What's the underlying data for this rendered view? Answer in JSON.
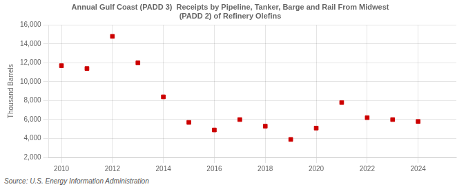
{
  "chart_data": {
    "type": "scatter",
    "title": "Annual Gulf Coast (PADD 3)  Receipts by Pipeline, Tanker, Barge and Rail From Midwest\n(PADD 2) of Refinery Olefins",
    "y_label": "Thousand Barrels",
    "source": "Source: U.S. Energy Information Administration",
    "x": [
      2010,
      2011,
      2012,
      2013,
      2014,
      2015,
      2016,
      2017,
      2018,
      2019,
      2020,
      2021,
      2022,
      2023,
      2024
    ],
    "values": [
      11700,
      11400,
      14800,
      12000,
      8400,
      5700,
      4900,
      6000,
      5300,
      3900,
      5100,
      7800,
      6200,
      6000,
      5800
    ],
    "color": "#cc0000",
    "marker": "square",
    "xlim": [
      2009.5,
      2025.5
    ],
    "xticks": [
      2010,
      2012,
      2014,
      2016,
      2018,
      2020,
      2022,
      2024
    ],
    "ylim": [
      2000,
      16000
    ],
    "yticks": [
      {
        "value": 2000,
        "label": "2,000"
      },
      {
        "value": 4000,
        "label": "4,000"
      },
      {
        "value": 6000,
        "label": "6,000"
      },
      {
        "value": 8000,
        "label": "8,000"
      },
      {
        "value": 10000,
        "label": "10,000"
      },
      {
        "value": 12000,
        "label": "12,000"
      },
      {
        "value": 14000,
        "label": "14,000"
      },
      {
        "value": 16000,
        "label": "16,000"
      }
    ],
    "grid": true
  }
}
